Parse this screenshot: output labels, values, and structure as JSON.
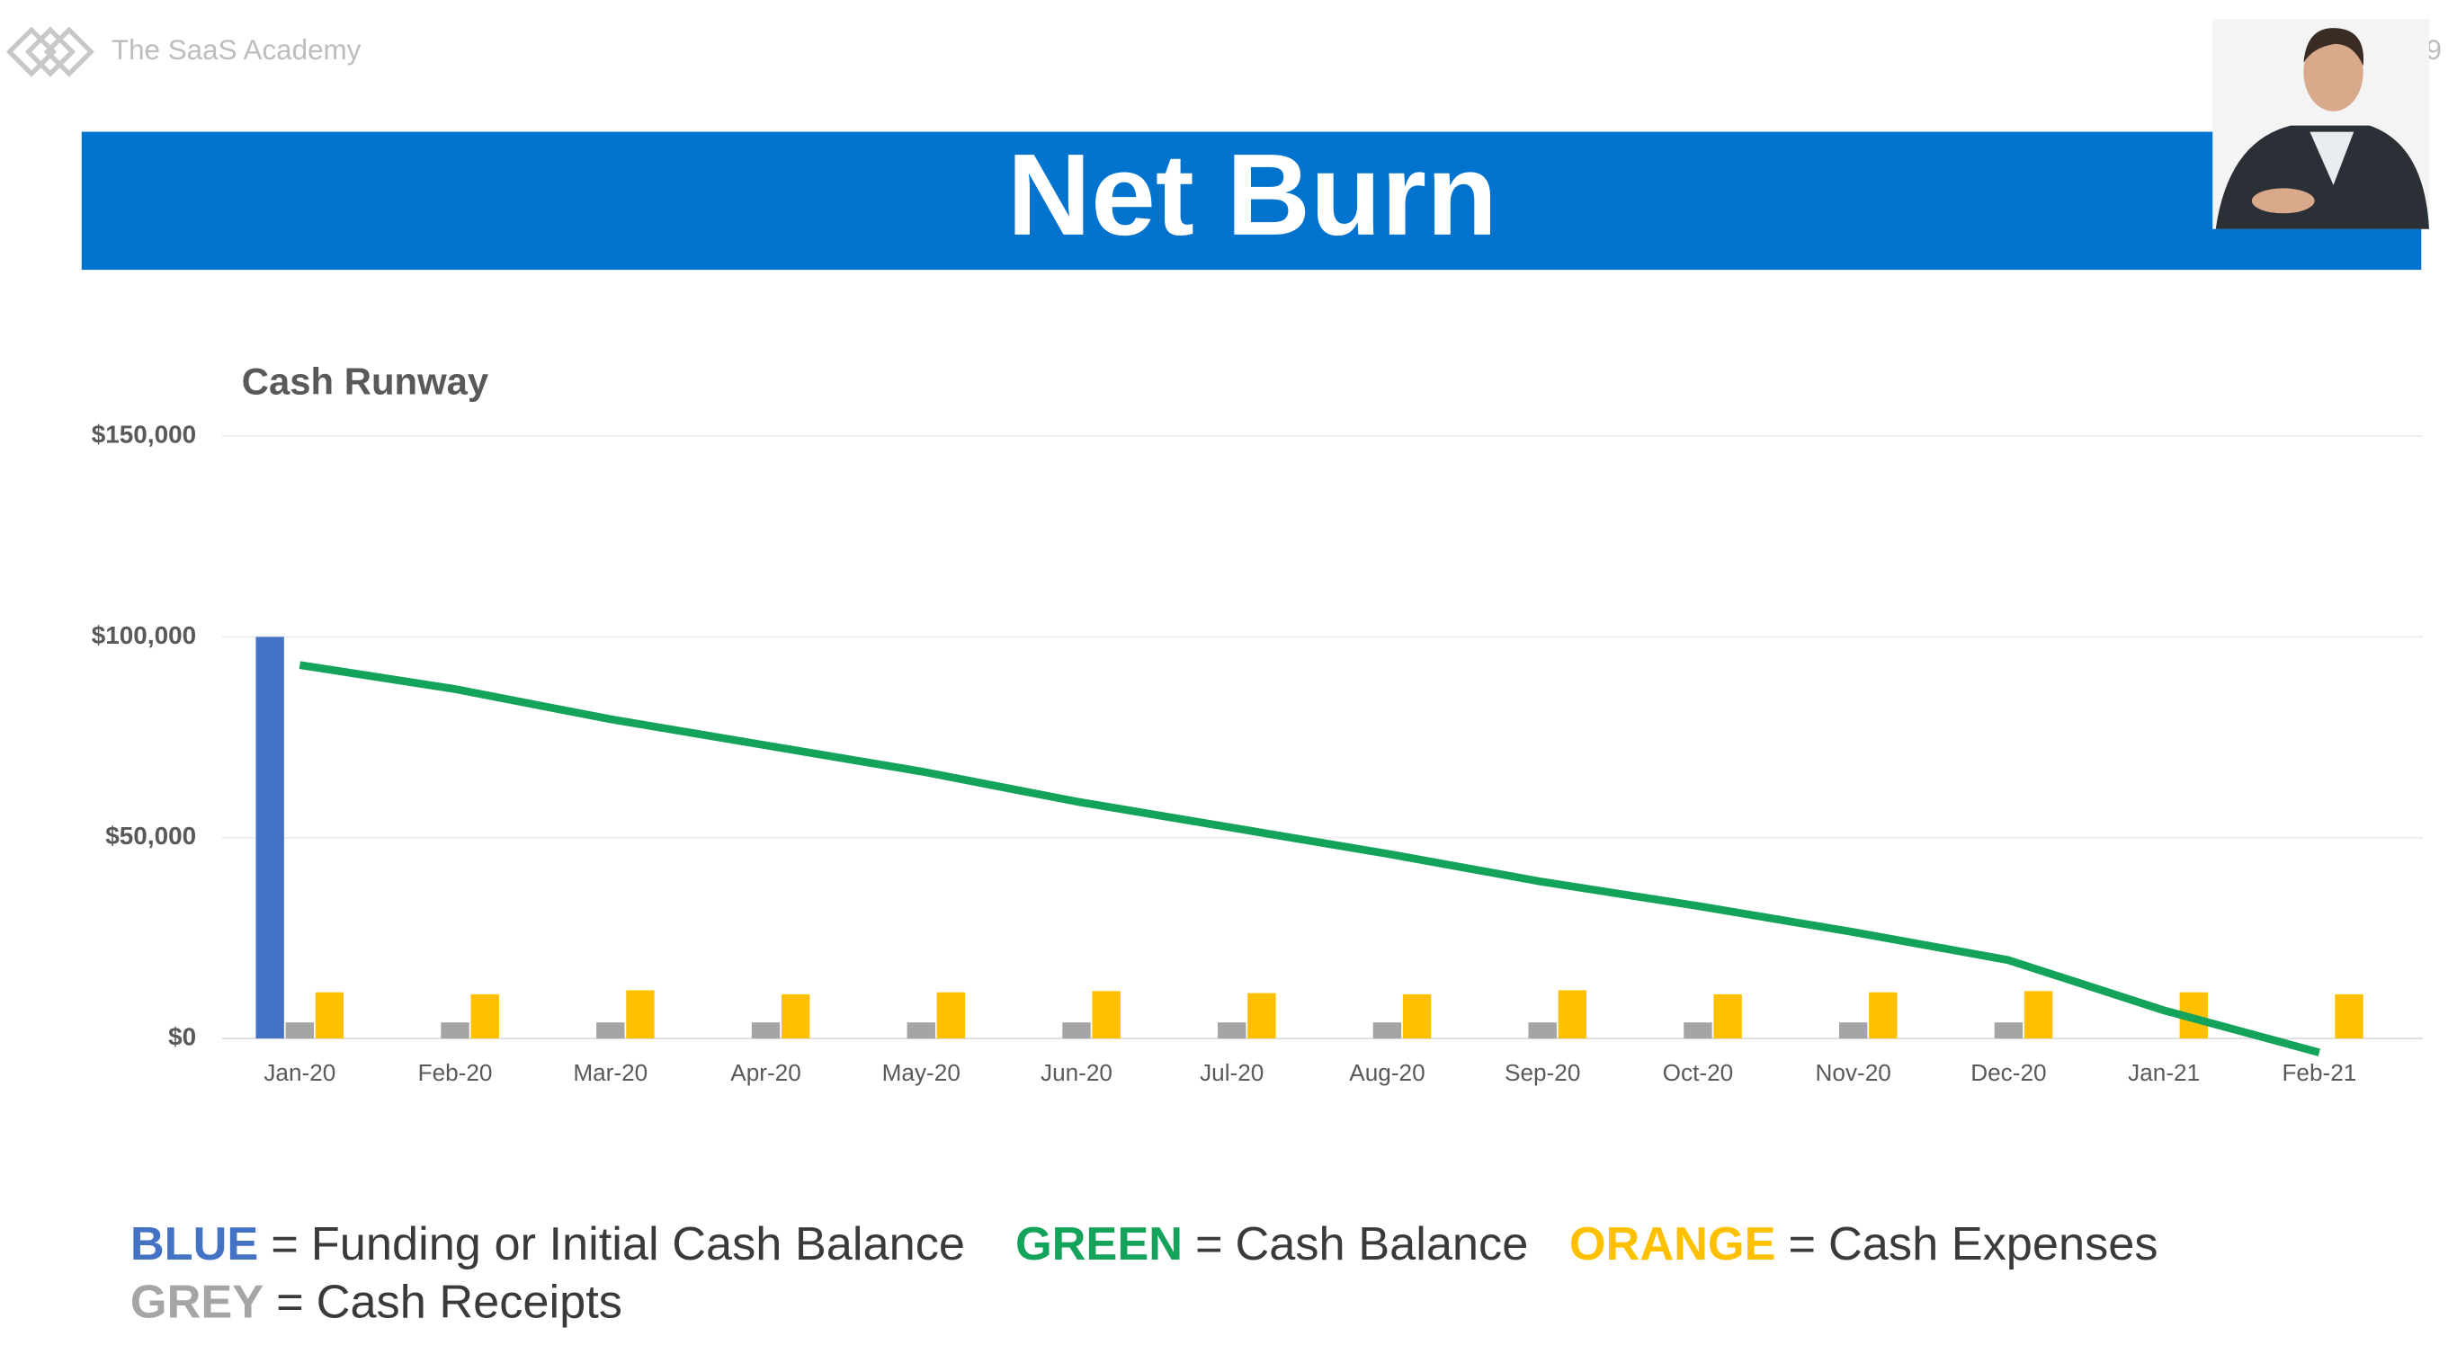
{
  "brand": "The SaaS Academy",
  "page_number": "9",
  "slide_title": "Net Burn",
  "key_separator": "=",
  "chart_data": {
    "type": "bar",
    "title": "Cash Runway",
    "categories": [
      "Jan-20",
      "Feb-20",
      "Mar-20",
      "Apr-20",
      "May-20",
      "Jun-20",
      "Jul-20",
      "Aug-20",
      "Sep-20",
      "Oct-20",
      "Nov-20",
      "Dec-20",
      "Jan-21",
      "Feb-21"
    ],
    "series": [
      {
        "name": "Funding or Initial Cash Balance",
        "key_label": "BLUE",
        "color": "#4472c4",
        "type": "bar",
        "values": [
          100000,
          null,
          null,
          null,
          null,
          null,
          null,
          null,
          null,
          null,
          null,
          null,
          null,
          null
        ]
      },
      {
        "name": "Cash Balance",
        "key_label": "GREEN",
        "color": "#13a35a",
        "type": "line",
        "values": [
          93000,
          87000,
          79500,
          73000,
          66500,
          59000,
          52500,
          46000,
          39000,
          33000,
          26500,
          19500,
          7000,
          -3500
        ]
      },
      {
        "name": "Cash Expenses",
        "key_label": "ORANGE",
        "color": "#ffc000",
        "type": "bar",
        "values": [
          11500,
          11000,
          12000,
          11000,
          11500,
          11800,
          11300,
          11000,
          12000,
          11000,
          11500,
          11800,
          11500,
          11000
        ]
      },
      {
        "name": "Cash Receipts",
        "key_label": "GREY",
        "color": "#a5a5a5",
        "type": "bar",
        "values": [
          4000,
          4000,
          4000,
          4000,
          4000,
          4000,
          4000,
          4000,
          4000,
          4000,
          4000,
          4000,
          null,
          null
        ]
      }
    ],
    "ylim": [
      0,
      150000
    ],
    "yticks": [
      {
        "value": 0,
        "label": "$0"
      },
      {
        "value": 50000,
        "label": "$50,000"
      },
      {
        "value": 100000,
        "label": "$100,000"
      },
      {
        "value": 150000,
        "label": "$150,000"
      }
    ],
    "grid": true
  }
}
